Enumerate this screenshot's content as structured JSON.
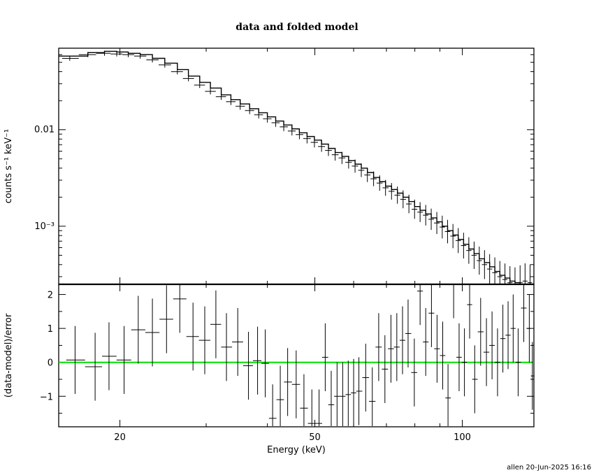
{
  "chart_data": [
    {
      "type": "line",
      "panel": "spectrum",
      "title": "data and folded model",
      "ylabel": "counts s⁻¹ keV⁻¹",
      "xscale": "log",
      "yscale": "log",
      "xlim": [
        15,
        140
      ],
      "ylim": [
        0.00025,
        0.07
      ],
      "y_ticks": [
        0.001,
        0.01
      ],
      "y_tick_labels": [
        "10⁻³",
        "0.01"
      ],
      "grid": false,
      "series": [
        {
          "style": "data-crosses",
          "points": [
            [
              15.8,
              0.055
            ],
            [
              17.2,
              0.06
            ],
            [
              18.6,
              0.062
            ],
            [
              19.7,
              0.061
            ],
            [
              20.8,
              0.06
            ],
            [
              22.0,
              0.058
            ],
            [
              23.3,
              0.053
            ],
            [
              24.7,
              0.047
            ],
            [
              26.2,
              0.04
            ],
            [
              27.6,
              0.034
            ],
            [
              29.1,
              0.029
            ],
            [
              30.6,
              0.025
            ],
            [
              32.2,
              0.022
            ],
            [
              33.7,
              0.0195
            ],
            [
              35.2,
              0.0175
            ],
            [
              36.8,
              0.0158
            ],
            [
              38.4,
              0.0143
            ],
            [
              40.0,
              0.013
            ],
            [
              41.6,
              0.0118
            ],
            [
              43.2,
              0.0107
            ],
            [
              44.9,
              0.0097
            ],
            [
              46.5,
              0.0089
            ],
            [
              48.2,
              0.0081
            ],
            [
              49.9,
              0.0074
            ],
            [
              51.6,
              0.0067
            ],
            [
              53.3,
              0.0061
            ],
            [
              55.0,
              0.0055
            ],
            [
              56.8,
              0.0051
            ],
            [
              58.6,
              0.0046
            ],
            [
              60.4,
              0.0042
            ],
            [
              62.2,
              0.0038
            ],
            [
              64.0,
              0.0034
            ],
            [
              65.9,
              0.0031
            ],
            [
              67.8,
              0.0028
            ],
            [
              69.7,
              0.0025
            ],
            [
              71.7,
              0.0023
            ],
            [
              73.7,
              0.0021
            ],
            [
              75.7,
              0.0019
            ],
            [
              77.8,
              0.0017
            ],
            [
              79.9,
              0.0015
            ],
            [
              82.0,
              0.0014
            ],
            [
              84.2,
              0.0013
            ],
            [
              86.4,
              0.00118
            ],
            [
              88.7,
              0.00108
            ],
            [
              91.0,
              0.00098
            ],
            [
              93.3,
              0.00088
            ],
            [
              95.7,
              0.00079
            ],
            [
              98.1,
              0.00071
            ],
            [
              100.6,
              0.00063
            ],
            [
              103.1,
              0.00056
            ],
            [
              105.7,
              0.0005
            ],
            [
              108.3,
              0.00044
            ],
            [
              111.0,
              0.0004
            ],
            [
              113.7,
              0.00036
            ],
            [
              116.5,
              0.00033
            ],
            [
              119.3,
              0.0003
            ],
            [
              122.2,
              0.00028
            ],
            [
              125.1,
              0.00026
            ],
            [
              128.1,
              0.00025
            ],
            [
              131.2,
              0.00026
            ],
            [
              134.3,
              0.00027
            ],
            [
              137.5,
              0.00026
            ]
          ]
        },
        {
          "style": "model-steps",
          "points": [
            [
              15.0,
              0.058
            ],
            [
              17.2,
              0.063
            ],
            [
              18.6,
              0.065
            ],
            [
              19.7,
              0.064
            ],
            [
              20.8,
              0.062
            ],
            [
              22.0,
              0.06
            ],
            [
              23.3,
              0.055
            ],
            [
              24.7,
              0.049
            ],
            [
              26.2,
              0.042
            ],
            [
              27.6,
              0.036
            ],
            [
              29.1,
              0.031
            ],
            [
              30.6,
              0.027
            ],
            [
              32.2,
              0.023
            ],
            [
              33.7,
              0.0205
            ],
            [
              35.2,
              0.0185
            ],
            [
              36.8,
              0.0165
            ],
            [
              38.4,
              0.015
            ],
            [
              40.0,
              0.0136
            ],
            [
              41.6,
              0.0123
            ],
            [
              43.2,
              0.0112
            ],
            [
              44.9,
              0.0102
            ],
            [
              46.5,
              0.0093
            ],
            [
              48.2,
              0.0085
            ],
            [
              49.9,
              0.0078
            ],
            [
              51.6,
              0.0071
            ],
            [
              53.3,
              0.0064
            ],
            [
              55.0,
              0.0058
            ],
            [
              56.8,
              0.0053
            ],
            [
              58.6,
              0.0048
            ],
            [
              60.4,
              0.0044
            ],
            [
              62.2,
              0.004
            ],
            [
              64.0,
              0.0036
            ],
            [
              65.9,
              0.0032
            ],
            [
              67.8,
              0.0029
            ],
            [
              69.7,
              0.0026
            ],
            [
              71.7,
              0.0024
            ],
            [
              73.7,
              0.0022
            ],
            [
              75.7,
              0.002
            ],
            [
              77.8,
              0.0018
            ],
            [
              79.9,
              0.0016
            ],
            [
              82.0,
              0.00146
            ],
            [
              84.2,
              0.00134
            ],
            [
              86.4,
              0.00122
            ],
            [
              88.7,
              0.00111
            ],
            [
              91.0,
              0.001
            ],
            [
              93.3,
              0.0009
            ],
            [
              95.7,
              0.00081
            ],
            [
              98.1,
              0.00073
            ],
            [
              100.6,
              0.00065
            ],
            [
              103.1,
              0.00058
            ],
            [
              105.7,
              0.00052
            ],
            [
              108.3,
              0.00046
            ],
            [
              111.0,
              0.00042
            ],
            [
              113.7,
              0.00038
            ],
            [
              116.5,
              0.00034
            ],
            [
              119.3,
              0.00031
            ],
            [
              122.2,
              0.00029
            ],
            [
              125.1,
              0.00027
            ],
            [
              128.1,
              0.00026
            ],
            [
              131.2,
              0.00025
            ],
            [
              134.3,
              0.00025
            ],
            [
              137.5,
              0.00025
            ],
            [
              140.0,
              0.00025
            ]
          ]
        }
      ]
    },
    {
      "type": "scatter",
      "panel": "residuals",
      "xlabel": "Energy (keV)",
      "ylabel": "(data-model)/error",
      "xscale": "log",
      "xlim": [
        15,
        140
      ],
      "ylim": [
        -1.9,
        2.3
      ],
      "x_ticks": [
        20,
        50,
        100
      ],
      "x_tick_labels": [
        "20",
        "50",
        "100"
      ],
      "y_ticks": [
        -1,
        0,
        1,
        2
      ],
      "y_tick_labels": [
        "−1",
        "0",
        "1",
        "2"
      ],
      "reference_line": {
        "y": 0,
        "color": "#00e000"
      },
      "series": [
        {
          "style": "data-crosses",
          "points": [
            [
              16.2,
              0.07
            ],
            [
              17.8,
              -0.13
            ],
            [
              19.0,
              0.18
            ],
            [
              20.4,
              0.07
            ],
            [
              21.8,
              0.96
            ],
            [
              23.3,
              0.88
            ],
            [
              24.9,
              1.27
            ],
            [
              26.5,
              1.87
            ],
            [
              28.2,
              0.76
            ],
            [
              29.8,
              0.65
            ],
            [
              31.4,
              1.12
            ],
            [
              33.0,
              0.45
            ],
            [
              34.8,
              0.6
            ],
            [
              36.6,
              -0.1
            ],
            [
              38.2,
              0.05
            ],
            [
              39.6,
              -0.03
            ],
            [
              41.0,
              -1.65
            ],
            [
              42.5,
              -1.1
            ],
            [
              44.0,
              -0.58
            ],
            [
              45.8,
              -0.65
            ],
            [
              47.5,
              -1.35
            ],
            [
              49.3,
              -1.8
            ],
            [
              51.0,
              -1.8
            ],
            [
              52.5,
              0.15
            ],
            [
              54.0,
              -1.25
            ],
            [
              55.5,
              -1.0
            ],
            [
              57.0,
              -1.0
            ],
            [
              58.5,
              -0.95
            ],
            [
              60.0,
              -0.9
            ],
            [
              61.5,
              -0.85
            ],
            [
              63.5,
              -0.45
            ],
            [
              65.5,
              -1.15
            ],
            [
              67.5,
              0.45
            ],
            [
              69.5,
              -0.2
            ],
            [
              71.5,
              0.4
            ],
            [
              73.5,
              0.45
            ],
            [
              75.5,
              0.65
            ],
            [
              77.5,
              0.85
            ],
            [
              79.8,
              -0.3
            ],
            [
              82.0,
              2.1
            ],
            [
              84.2,
              0.6
            ],
            [
              86.5,
              1.45
            ],
            [
              88.8,
              0.4
            ],
            [
              91.2,
              0.2
            ],
            [
              93.5,
              -1.05
            ],
            [
              96.0,
              2.3
            ],
            [
              98.5,
              0.15
            ],
            [
              101.0,
              0.0
            ],
            [
              103.5,
              1.7
            ],
            [
              106.0,
              -0.5
            ],
            [
              109.0,
              0.9
            ],
            [
              112.0,
              0.3
            ],
            [
              115.0,
              0.5
            ],
            [
              118.0,
              0.0
            ],
            [
              121.0,
              0.7
            ],
            [
              124.0,
              0.8
            ],
            [
              127.0,
              1.0
            ],
            [
              130.0,
              0.0
            ],
            [
              133.5,
              1.6
            ],
            [
              137.0,
              1.0
            ],
            [
              139.0,
              -0.4
            ]
          ]
        }
      ]
    }
  ],
  "footer": {
    "stamp": "allen 20-Jun-2025 16:16"
  }
}
